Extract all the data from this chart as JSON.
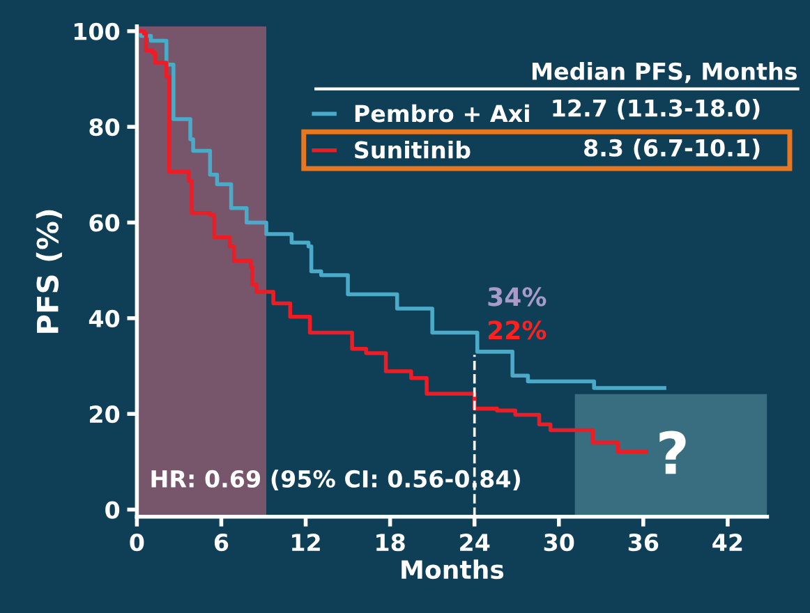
{
  "chart_data": {
    "type": "step",
    "xlabel": "Months",
    "ylabel": "PFS (%)",
    "legend_title": "Median PFS, Months",
    "legend": "top right",
    "grid": false,
    "marker": "none",
    "line_style": "solid",
    "xlim": [
      0,
      44.8
    ],
    "ylim": [
      -1.5,
      101
    ],
    "xticks": [
      0,
      6,
      12,
      18,
      24,
      30,
      36,
      42
    ],
    "yticks": [
      0,
      20,
      40,
      60,
      80,
      100
    ],
    "series": [
      {
        "name": "Pembro + Axi",
        "color": "#4aaac8",
        "x": [
          0,
          0.3,
          1.0,
          2.1,
          2.6,
          3.8,
          3.8,
          4.0,
          5.2,
          5.2,
          5.7,
          6.7,
          6.7,
          7.8,
          7.8,
          9.2,
          9.2,
          11.0,
          11.0,
          12.2,
          12.4,
          13.1,
          15.0,
          15.0,
          18.0,
          18.5,
          21.0,
          21.0,
          24.2,
          24.2,
          26.7,
          26.7,
          27.8,
          32.5,
          32.5,
          37.5
        ],
        "values": [
          100,
          99,
          98,
          93,
          81.6,
          81.6,
          77.4,
          75,
          72.5,
          70,
          68,
          65,
          63,
          63,
          60,
          60,
          57.6,
          57,
          55.8,
          55,
          49.8,
          49,
          46.3,
          45,
          45,
          42,
          40,
          37,
          37,
          33,
          33,
          28,
          26.8,
          26.8,
          25.4,
          25.4
        ]
      },
      {
        "name": "Sunitinib",
        "color": "#ee1c25",
        "x": [
          0,
          0.5,
          0.65,
          1.1,
          1.3,
          2.1,
          2.3,
          2.3,
          3.7,
          3.9,
          5.2,
          5.5,
          6.6,
          6.9,
          8.1,
          8.2,
          8.5,
          9.5,
          9.7,
          10.8,
          10.9,
          12.3,
          12.3,
          15.3,
          15.3,
          16.3,
          17.7,
          17.7,
          19.5,
          19.5,
          20.6,
          20.6,
          24.0,
          24.0,
          25.6,
          26.9,
          28.6,
          28.6,
          29.4,
          32.4,
          32.4,
          34.2,
          34.2,
          36.2
        ],
        "values": [
          100,
          99.5,
          96,
          95.5,
          93.4,
          90.5,
          89.6,
          70.6,
          68.7,
          62,
          61.6,
          56.9,
          55,
          52,
          50.7,
          47,
          45.5,
          45.5,
          43.1,
          43.1,
          40.3,
          40.3,
          37,
          37,
          33.6,
          32.7,
          32.7,
          28.9,
          28.9,
          27.5,
          27.5,
          24.2,
          24.2,
          21.1,
          20.7,
          19.8,
          19.8,
          17.8,
          16.6,
          16.6,
          14,
          14,
          12.1,
          12.1
        ]
      }
    ],
    "bands": [
      {
        "axis": "x",
        "from": 0,
        "to": 9.2,
        "color": "#8a5a70"
      }
    ],
    "ref_lines": [
      {
        "axis": "x",
        "value": 24,
        "line_style": "dashed",
        "color": "#ffffff"
      }
    ],
    "annotations": [
      "12.7 (11.3-18.0)",
      "8.3 (6.7-10.1)",
      "34%",
      "22%",
      "HR: 0.69 (95% CI: 0.56-0.84)",
      "?"
    ]
  }
}
